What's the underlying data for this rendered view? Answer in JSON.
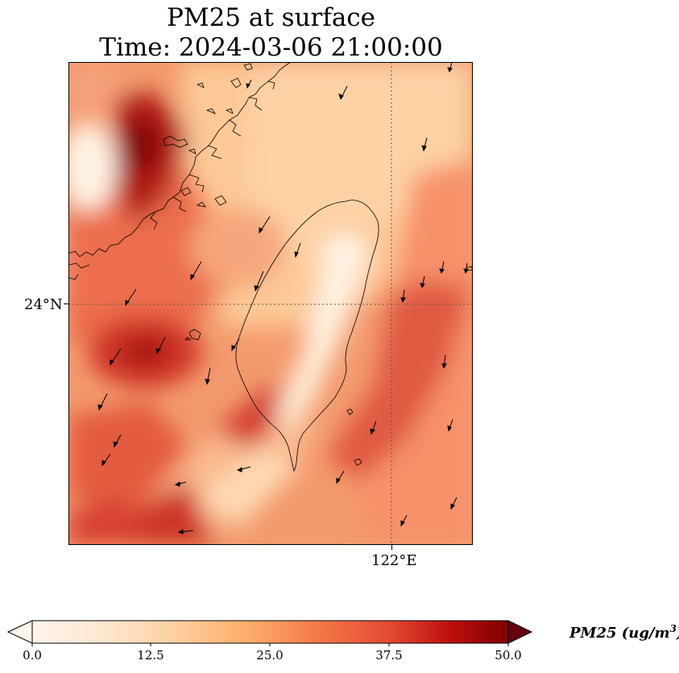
{
  "map": {
    "title_line1": "PM25 at surface",
    "title_line2": "Time: 2024-03-06 21:00:00",
    "lat_tick": "24°N",
    "lon_tick": "122°E",
    "variable": "PM25",
    "gridlines": "dotted"
  },
  "colorbar": {
    "label_main": "PM25 (ug/m",
    "label_sup": "3",
    "label_end": ")",
    "ticks": [
      "0.0",
      "12.5",
      "25.0",
      "37.5",
      "50.0"
    ],
    "range": [
      0.0,
      50.0
    ],
    "extend": "both",
    "colormap_stops": [
      "#fff5eb",
      "#fdd9b4",
      "#fdae6b",
      "#f4794a",
      "#d62f27",
      "#a50f15",
      "#67000d"
    ]
  }
}
